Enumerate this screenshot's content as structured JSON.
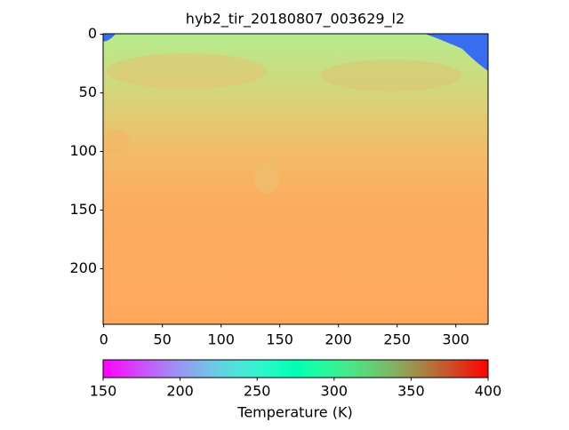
{
  "chart_data": {
    "type": "image",
    "title": "hyb2_tir_20180807_003629_l2",
    "xlim": [
      -0.5,
      327.5
    ],
    "xticks": [
      0,
      50,
      100,
      150,
      200,
      250,
      300
    ],
    "ylim": [
      247.5,
      -0.5
    ],
    "yticks": [
      0,
      50,
      100,
      150,
      200
    ],
    "colormap": "rainbow",
    "colorbar": {
      "label": "Temperature (K)",
      "lim": [
        150,
        400
      ],
      "ticks": [
        150,
        200,
        250,
        300,
        350,
        400
      ]
    }
  }
}
